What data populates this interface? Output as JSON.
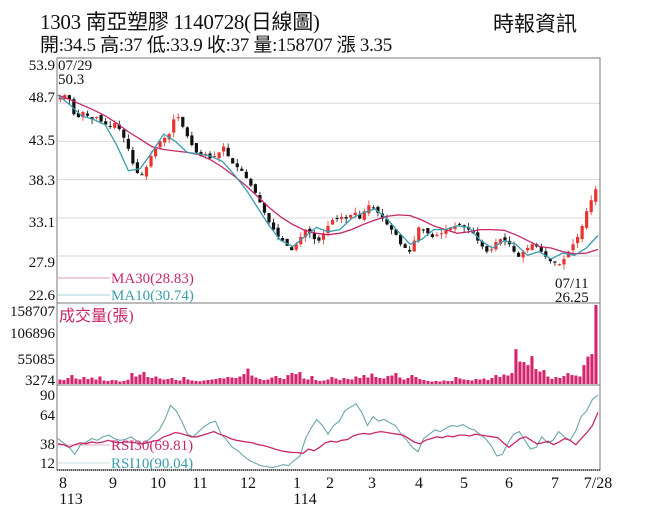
{
  "header": {
    "title": "1303  南亞塑膠 1140728(日線圖)",
    "source": "時報資訊",
    "summary": "開:34.5 高:37 低:33.9 收:37 量:158707 漲 3.35",
    "open": 34.5,
    "high": 37,
    "low": 33.9,
    "close": 37,
    "volume": 158707,
    "change": 3.35
  },
  "colors": {
    "up": "#e8332f",
    "down": "#111111",
    "ma30": "#c8286a",
    "ma10": "#3a9cae",
    "volume": "#d6246e",
    "rsi30": "#c8286a",
    "rsi10": "#6aa6ad",
    "grid": "#d9d9d9",
    "frame": "#777777"
  },
  "chart_data": [
    {
      "type": "candlestick",
      "title": "1303 南亞塑膠 1140728(日線圖)",
      "ylabel": "",
      "yticks": [
        53.9,
        48.7,
        43.5,
        38.3,
        33.1,
        27.9,
        22.6
      ],
      "ylim": [
        22.6,
        53.9
      ],
      "grid": true,
      "annotations": [
        {
          "label": "07/29",
          "value": "50.3",
          "note": "high"
        },
        {
          "label": "07/11",
          "value": "26.25",
          "note": "low"
        }
      ],
      "legend": [
        {
          "name": "MA30",
          "value": "MA30(28.83)"
        },
        {
          "name": "MA10",
          "value": "MA10(30.74)"
        }
      ],
      "close_path": [
        49.5,
        49.8,
        49.2,
        47.2,
        46.8,
        47.5,
        47.0,
        46.5,
        46.8,
        46.2,
        45.8,
        45.5,
        46.0,
        45.2,
        44.0,
        42.5,
        40.5,
        39.2,
        39.0,
        40.0,
        41.5,
        42.5,
        43.5,
        44.0,
        44.5,
        46.5,
        46.8,
        45.5,
        44.2,
        43.0,
        42.0,
        41.5,
        41.8,
        41.2,
        41.5,
        42.0,
        42.8,
        41.5,
        40.5,
        40.0,
        39.5,
        38.5,
        37.5,
        36.5,
        35.2,
        33.8,
        32.5,
        31.5,
        30.5,
        30.0,
        29.3,
        28.7,
        29.5,
        30.5,
        31.5,
        31.0,
        30.2,
        30.0,
        31.0,
        32.0,
        32.8,
        33.0,
        33.2,
        33.0,
        33.5,
        33.8,
        33.0,
        34.0,
        34.8,
        34.5,
        33.8,
        33.0,
        32.2,
        31.5,
        30.8,
        29.5,
        29.0,
        28.5,
        30.0,
        31.8,
        31.5,
        31.0,
        30.5,
        30.8,
        31.0,
        31.5,
        31.8,
        32.0,
        32.2,
        31.8,
        31.5,
        31.0,
        30.0,
        29.2,
        28.5,
        28.8,
        29.8,
        30.2,
        30.0,
        29.5,
        28.5,
        27.8,
        28.5,
        29.0,
        29.5,
        29.2,
        28.5,
        27.8,
        27.2,
        27.0,
        26.8,
        27.5,
        28.5,
        29.5,
        30.5,
        32.0,
        34.0,
        35.5,
        37.0
      ],
      "ma30_path": [
        49.8,
        49.2,
        48.5,
        47.8,
        47.0,
        46.0,
        44.8,
        43.8,
        42.8,
        42.4,
        42.2,
        42.0,
        41.7,
        41.0,
        40.0,
        38.8,
        37.5,
        36.0,
        34.5,
        33.2,
        32.2,
        31.4,
        31.0,
        30.8,
        31.0,
        31.5,
        32.2,
        32.8,
        33.3,
        33.5,
        33.4,
        32.8,
        32.0,
        31.5,
        31.0,
        31.2,
        31.5,
        31.5,
        31.4,
        30.8,
        30.0,
        29.2,
        29.0,
        28.5,
        28.2,
        28.3,
        28.8
      ],
      "ma10_path": [
        49.8,
        48.5,
        47.0,
        46.5,
        45.8,
        43.0,
        39.5,
        39.8,
        42.0,
        44.5,
        43.5,
        42.0,
        41.8,
        41.5,
        40.8,
        39.0,
        37.0,
        34.5,
        32.0,
        30.0,
        29.2,
        30.5,
        31.8,
        31.2,
        31.5,
        33.0,
        33.8,
        34.3,
        33.0,
        31.2,
        29.5,
        30.2,
        31.5,
        31.5,
        32.0,
        31.8,
        30.0,
        29.0,
        30.0,
        29.5,
        28.0,
        28.5,
        27.5,
        28.3,
        28.0,
        29.0,
        30.7
      ]
    },
    {
      "type": "bar",
      "title": "成交量(張)",
      "yticks": [
        158707,
        106896,
        55085,
        3274
      ],
      "ylim": [
        0,
        158707
      ],
      "values_note": "daily volume (張), approx",
      "values": [
        9000,
        8000,
        12000,
        18000,
        11000,
        9500,
        14000,
        10000,
        13000,
        9000,
        15000,
        7000,
        6000,
        8000,
        7500,
        5000,
        6000,
        8500,
        22000,
        15000,
        19000,
        24000,
        14000,
        12000,
        15000,
        11000,
        9000,
        10000,
        12000,
        8000,
        7000,
        14000,
        9000,
        7000,
        6000,
        5500,
        7000,
        8000,
        9000,
        10000,
        12000,
        11000,
        14000,
        13000,
        12000,
        15000,
        20000,
        31000,
        17000,
        13000,
        10000,
        8000,
        9000,
        13000,
        16000,
        12000,
        10000,
        18000,
        22000,
        20000,
        24000,
        11000,
        9000,
        16000,
        8000,
        6000,
        7000,
        9000,
        14000,
        11000,
        8000,
        12000,
        10000,
        9000,
        15000,
        12000,
        18000,
        13000,
        21000,
        14000,
        12000,
        11000,
        16000,
        17000,
        22000,
        13000,
        9000,
        12000,
        18000,
        14000,
        10000,
        8000,
        6000,
        5000,
        6000,
        5000,
        7000,
        6000,
        6000,
        14000,
        11000,
        9000,
        8000,
        7000,
        10000,
        9000,
        11000,
        8000,
        12000,
        18000,
        14000,
        19000,
        17000,
        22000,
        70000,
        45000,
        44000,
        38000,
        56000,
        30000,
        25000,
        28000,
        15000,
        10000,
        14000,
        12000,
        16000,
        22000,
        18000,
        17000,
        15000,
        38000,
        55000,
        60000,
        158707
      ]
    },
    {
      "type": "line",
      "title": "RSI",
      "yticks": [
        90,
        64,
        38,
        12
      ],
      "ylim": [
        5,
        95
      ],
      "legend": [
        {
          "name": "RSI30",
          "value": "RSI30(69.81)"
        },
        {
          "name": "RSI10",
          "value": "RSI10(90.04)"
        }
      ],
      "rsi30": [
        34,
        33,
        30,
        33,
        35,
        34,
        36,
        35,
        36,
        38,
        36,
        35,
        36,
        36,
        35,
        34,
        35,
        37,
        38,
        42,
        44,
        47,
        46,
        44,
        42,
        42,
        44,
        46,
        48,
        45,
        43,
        40,
        38,
        37,
        36,
        35,
        33,
        32,
        30,
        28,
        26,
        25,
        24,
        24,
        23,
        28,
        26,
        30,
        35,
        37,
        36,
        38,
        39,
        43,
        45,
        46,
        45,
        47,
        48,
        47,
        46,
        45,
        44,
        40,
        36,
        34,
        38,
        40,
        42,
        41,
        43,
        42,
        44,
        44,
        43,
        45,
        44,
        43,
        42,
        41,
        35,
        30,
        35,
        40,
        42,
        38,
        34,
        35,
        37,
        33,
        36,
        40,
        38,
        33,
        40,
        47,
        55,
        70
      ],
      "rsi10": [
        40,
        35,
        30,
        22,
        33,
        36,
        40,
        38,
        42,
        44,
        40,
        38,
        39,
        42,
        37,
        33,
        38,
        44,
        50,
        62,
        78,
        72,
        60,
        45,
        42,
        48,
        54,
        58,
        60,
        45,
        38,
        30,
        26,
        20,
        15,
        12,
        9,
        8,
        7,
        8,
        10,
        9,
        15,
        20,
        40,
        52,
        62,
        55,
        45,
        55,
        60,
        72,
        76,
        80,
        70,
        55,
        65,
        60,
        62,
        58,
        55,
        45,
        38,
        30,
        25,
        40,
        45,
        50,
        48,
        52,
        55,
        54,
        56,
        52,
        50,
        45,
        40,
        32,
        20,
        22,
        35,
        45,
        48,
        38,
        28,
        30,
        42,
        35,
        38,
        48,
        42,
        38,
        48,
        65,
        72,
        85,
        90
      ]
    },
    {
      "type": "axis",
      "xticks": [
        {
          "label": "8",
          "sub": "113"
        },
        {
          "label": "9"
        },
        {
          "label": "10"
        },
        {
          "label": "11"
        },
        {
          "label": "12"
        },
        {
          "label": "1",
          "sub": "114"
        },
        {
          "label": "2"
        },
        {
          "label": "3"
        },
        {
          "label": "4"
        },
        {
          "label": "5"
        },
        {
          "label": "6"
        },
        {
          "label": "7"
        },
        {
          "label": "7/28"
        }
      ]
    }
  ],
  "labels": {
    "price_high_date": "07/29",
    "price_high_value": "50.3",
    "price_low_date": "07/11",
    "price_low_value": "26.25",
    "ma30": "MA30(28.83)",
    "ma10": "MA10(30.74)",
    "volume_title": "成交量(張)",
    "rsi30": "RSI30(69.81)",
    "rsi10": "RSI10(90.04)",
    "y_price": [
      "53.9",
      "48.7",
      "43.5",
      "38.3",
      "33.1",
      "27.9",
      "22.6"
    ],
    "y_volume": [
      "158707",
      "106896",
      "55085",
      "3274"
    ],
    "y_rsi": [
      "90",
      "64",
      "38",
      "12"
    ],
    "x": [
      "8",
      "9",
      "10",
      "11",
      "12",
      "1",
      "2",
      "3",
      "4",
      "5",
      "6",
      "7",
      "7/28"
    ],
    "x_year_113": "113",
    "x_year_114": "114"
  }
}
